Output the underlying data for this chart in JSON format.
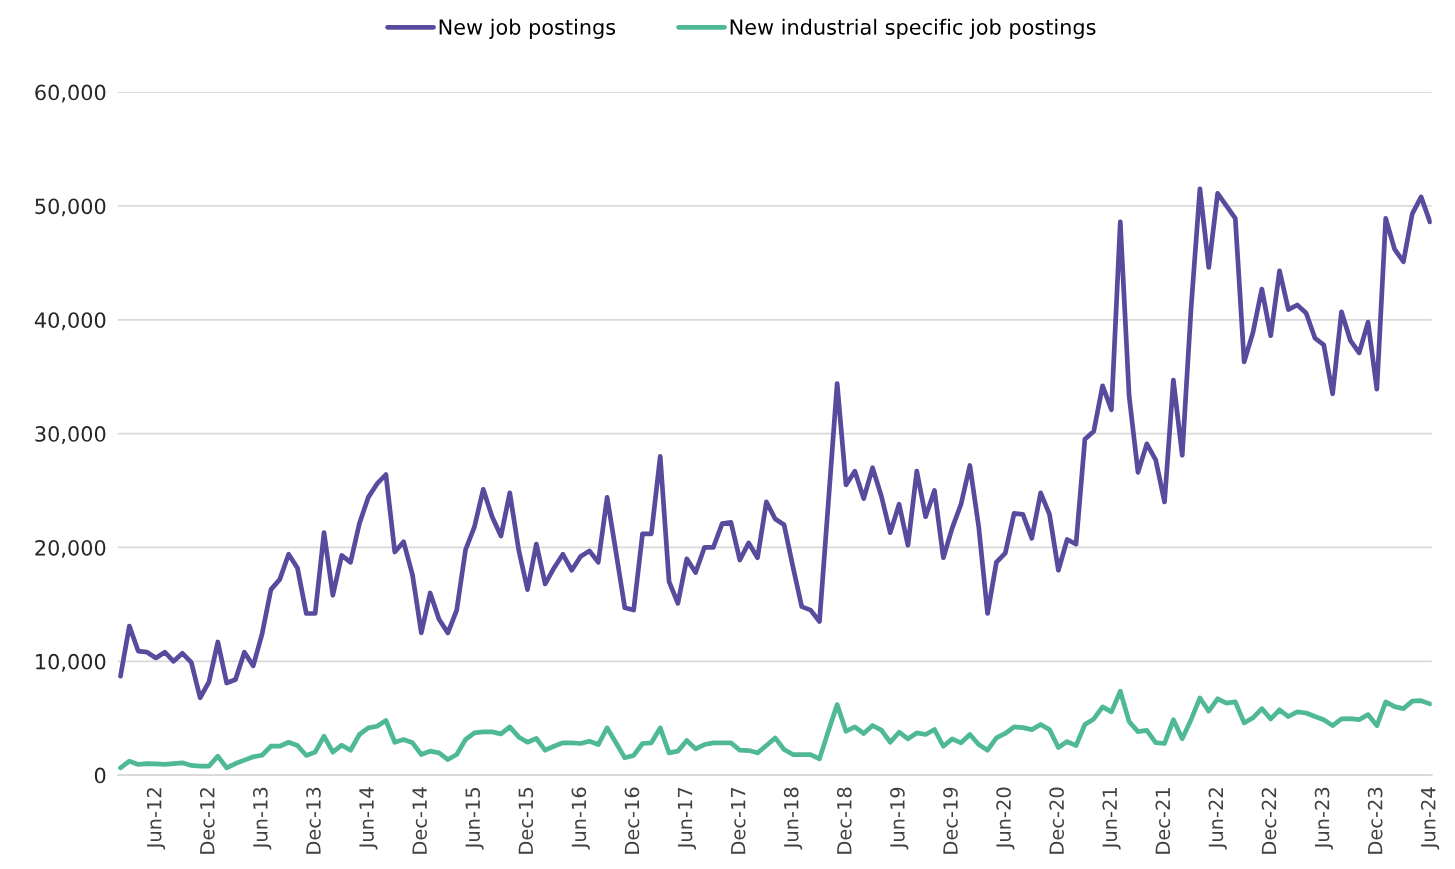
{
  "chart_data": {
    "type": "line",
    "categories": [
      null,
      null,
      null,
      null,
      "Jun-12",
      null,
      null,
      null,
      null,
      null,
      "Dec-12",
      null,
      null,
      null,
      null,
      null,
      "Jun-13",
      null,
      null,
      null,
      null,
      null,
      "Dec-13",
      null,
      null,
      null,
      null,
      null,
      "Jun-14",
      null,
      null,
      null,
      null,
      null,
      "Dec-14",
      null,
      null,
      null,
      null,
      null,
      "Jun-15",
      null,
      null,
      null,
      null,
      null,
      "Dec-15",
      null,
      null,
      null,
      null,
      null,
      "Jun-16",
      null,
      null,
      null,
      null,
      null,
      "Dec-16",
      null,
      null,
      null,
      null,
      null,
      "Jun-17",
      null,
      null,
      null,
      null,
      null,
      "Dec-17",
      null,
      null,
      null,
      null,
      null,
      "Jun-18",
      null,
      null,
      null,
      null,
      null,
      "Dec-18",
      null,
      null,
      null,
      null,
      null,
      "Jun-19",
      null,
      null,
      null,
      null,
      null,
      "Dec-19",
      null,
      null,
      null,
      null,
      null,
      "Jun-20",
      null,
      null,
      null,
      null,
      null,
      "Dec-20",
      null,
      null,
      null,
      null,
      null,
      "Jun-21",
      null,
      null,
      null,
      null,
      null,
      "Dec-21",
      null,
      null,
      null,
      null,
      null,
      "Jun-22",
      null,
      null,
      null,
      null,
      null,
      "Dec-22",
      null,
      null,
      null,
      null,
      null,
      "Jun-23",
      null,
      null,
      null,
      null,
      null,
      "Dec-23",
      null,
      null,
      null,
      null,
      null,
      "Jun-24"
    ],
    "series": [
      {
        "name": "New job postings",
        "color": "#574b9e",
        "values": [
          8700,
          13100,
          10900,
          10800,
          10300,
          10800,
          10000,
          10700,
          9900,
          6800,
          8200,
          11700,
          8100,
          8400,
          10800,
          9600,
          12400,
          16300,
          17200,
          19400,
          18200,
          14200,
          14200,
          21300,
          15800,
          19300,
          18700,
          22100,
          24400,
          25600,
          26400,
          19600,
          20500,
          17600,
          12500,
          16000,
          13700,
          12500,
          14500,
          19800,
          21800,
          25100,
          22700,
          21000,
          24800,
          19800,
          16300,
          20300,
          16800,
          18200,
          19400,
          18000,
          19200,
          19700,
          18700,
          24400,
          19600,
          14700,
          14500,
          21200,
          21200,
          28000,
          17000,
          15100,
          19000,
          17800,
          20000,
          20000,
          22100,
          22200,
          18900,
          20400,
          19100,
          24000,
          22500,
          22000,
          18300,
          14800,
          14500,
          13500,
          23900,
          34400,
          25500,
          26700,
          24300,
          27000,
          24500,
          21300,
          23800,
          20200,
          26700,
          22700,
          25000,
          19100,
          21700,
          23800,
          27200,
          21800,
          14200,
          18700,
          19500,
          23000,
          22900,
          20800,
          24800,
          22900,
          18000,
          20700,
          20300,
          29500,
          30200,
          34200,
          32100,
          48600,
          33300,
          26600,
          29100,
          27700,
          24000,
          34700,
          28100,
          41000,
          51500,
          44600,
          51100,
          50000,
          48900,
          36300,
          38900,
          42700,
          38600,
          44300,
          40900,
          41300,
          40600,
          38400,
          37800,
          33500,
          40700,
          38200,
          37100,
          39800,
          33900,
          48900,
          46200,
          45100,
          49300,
          50800,
          48600
        ]
      },
      {
        "name": "New industrial specific job postings",
        "color": "#4fb997",
        "values": [
          640,
          1230,
          940,
          1020,
          990,
          940,
          1020,
          1080,
          850,
          790,
          790,
          1670,
          640,
          1020,
          1320,
          1610,
          1750,
          2540,
          2540,
          2890,
          2600,
          1730,
          2020,
          3420,
          2020,
          2630,
          2190,
          3570,
          4150,
          4300,
          4800,
          2890,
          3130,
          2840,
          1810,
          2110,
          1960,
          1370,
          1810,
          3130,
          3710,
          3800,
          3800,
          3630,
          4240,
          3360,
          2890,
          3220,
          2190,
          2540,
          2840,
          2840,
          2780,
          2980,
          2690,
          4150,
          2840,
          1520,
          1730,
          2780,
          2840,
          4150,
          1960,
          2110,
          3040,
          2310,
          2690,
          2840,
          2840,
          2840,
          2190,
          2160,
          1960,
          2600,
          3270,
          2250,
          1810,
          1810,
          1810,
          1430,
          3860,
          6200,
          3860,
          4240,
          3660,
          4360,
          3950,
          2890,
          3770,
          3190,
          3710,
          3570,
          4010,
          2540,
          3190,
          2840,
          3570,
          2690,
          2190,
          3270,
          3660,
          4240,
          4170,
          4000,
          4450,
          4000,
          2430,
          2950,
          2600,
          4450,
          4940,
          6000,
          5560,
          7370,
          4700,
          3820,
          3930,
          2850,
          2780,
          4870,
          3200,
          4870,
          6780,
          5630,
          6710,
          6330,
          6430,
          4590,
          5040,
          5840,
          4940,
          5740,
          5150,
          5560,
          5460,
          5150,
          4870,
          4350,
          4940,
          4970,
          4870,
          5320,
          4350,
          6430,
          6020,
          5840,
          6500,
          6540,
          6260
        ]
      }
    ],
    "ylim": [
      0,
      60000
    ],
    "yticks": [
      {
        "value": 0,
        "label": "0"
      },
      {
        "value": 10000,
        "label": "10,000"
      },
      {
        "value": 20000,
        "label": "20,000"
      },
      {
        "value": 30000,
        "label": "30,000"
      },
      {
        "value": 40000,
        "label": "40,000"
      },
      {
        "value": 50000,
        "label": "50,000"
      },
      {
        "value": 60000,
        "label": "60,000"
      }
    ],
    "grid": "y",
    "legend": "top",
    "marker": "none",
    "line_style": "solid"
  }
}
